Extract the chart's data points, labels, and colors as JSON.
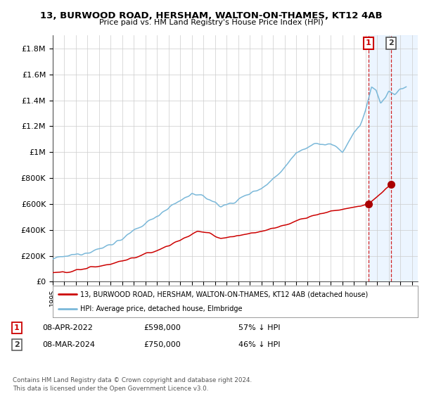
{
  "title_line1": "13, BURWOOD ROAD, HERSHAM, WALTON-ON-THAMES, KT12 4AB",
  "title_line2": "Price paid vs. HM Land Registry's House Price Index (HPI)",
  "ytick_values": [
    0,
    200000,
    400000,
    600000,
    800000,
    1000000,
    1200000,
    1400000,
    1600000,
    1800000
  ],
  "ylim": [
    0,
    1900000
  ],
  "xlim_left": 1995.5,
  "xlim_right": 2026.5,
  "hpi_color": "#7ab8d9",
  "price_color": "#cc0000",
  "marker_dot_color": "#aa0000",
  "marker1_year": 2022.25,
  "marker1_price": 598000,
  "marker1_date": "08-APR-2022",
  "marker1_pct": "57% ↓ HPI",
  "marker2_year": 2024.17,
  "marker2_price": 750000,
  "marker2_date": "08-MAR-2024",
  "marker2_pct": "46% ↓ HPI",
  "shade_start": 2022.25,
  "shade_end": 2026.5,
  "shade_color": "#ddeeff",
  "legend_label1": "13, BURWOOD ROAD, HERSHAM, WALTON-ON-THAMES, KT12 4AB (detached house)",
  "legend_label2": "HPI: Average price, detached house, Elmbridge",
  "footnote": "Contains HM Land Registry data © Crown copyright and database right 2024.\nThis data is licensed under the Open Government Licence v3.0.",
  "grid_color": "#cccccc",
  "bg_color": "#ffffff"
}
